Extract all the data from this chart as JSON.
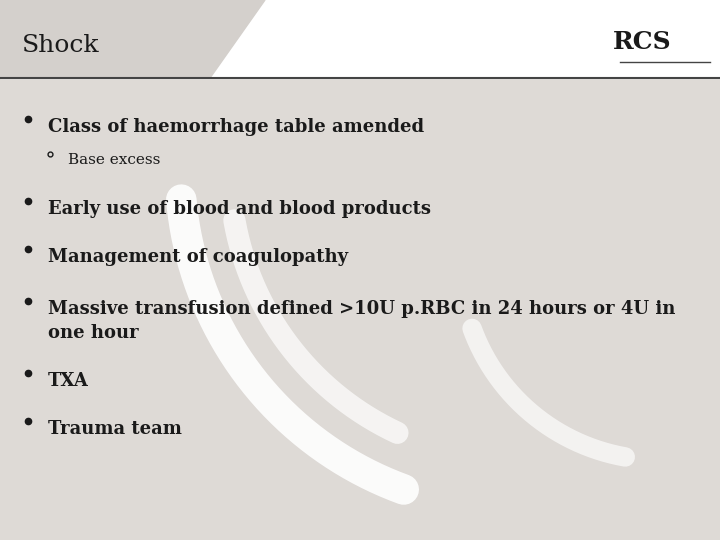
{
  "title": "Shock",
  "slide_bg": "#dedad6",
  "white_bg": "#ffffff",
  "header_grey": "#d4d0cc",
  "title_color": "#1a1a1a",
  "text_color": "#1a1a1a",
  "separator_color": "#444444",
  "rcs_text": "RCS",
  "bullet_items": [
    {
      "level": 1,
      "text": "Class of haemorrhage table amended"
    },
    {
      "level": 2,
      "text": "Base excess"
    },
    {
      "level": 1,
      "text": "Early use of blood and blood products"
    },
    {
      "level": 1,
      "text": "Management of coagulopathy"
    },
    {
      "level": 1,
      "text": "Massive transfusion defined >10U p.RBC in 24 hours or 4U in\none hour"
    },
    {
      "level": 1,
      "text": "TXA"
    },
    {
      "level": 1,
      "text": "Trauma team"
    }
  ],
  "title_fontsize": 18,
  "bullet1_fontsize": 13,
  "bullet2_fontsize": 11,
  "font_family": "DejaVu Serif"
}
